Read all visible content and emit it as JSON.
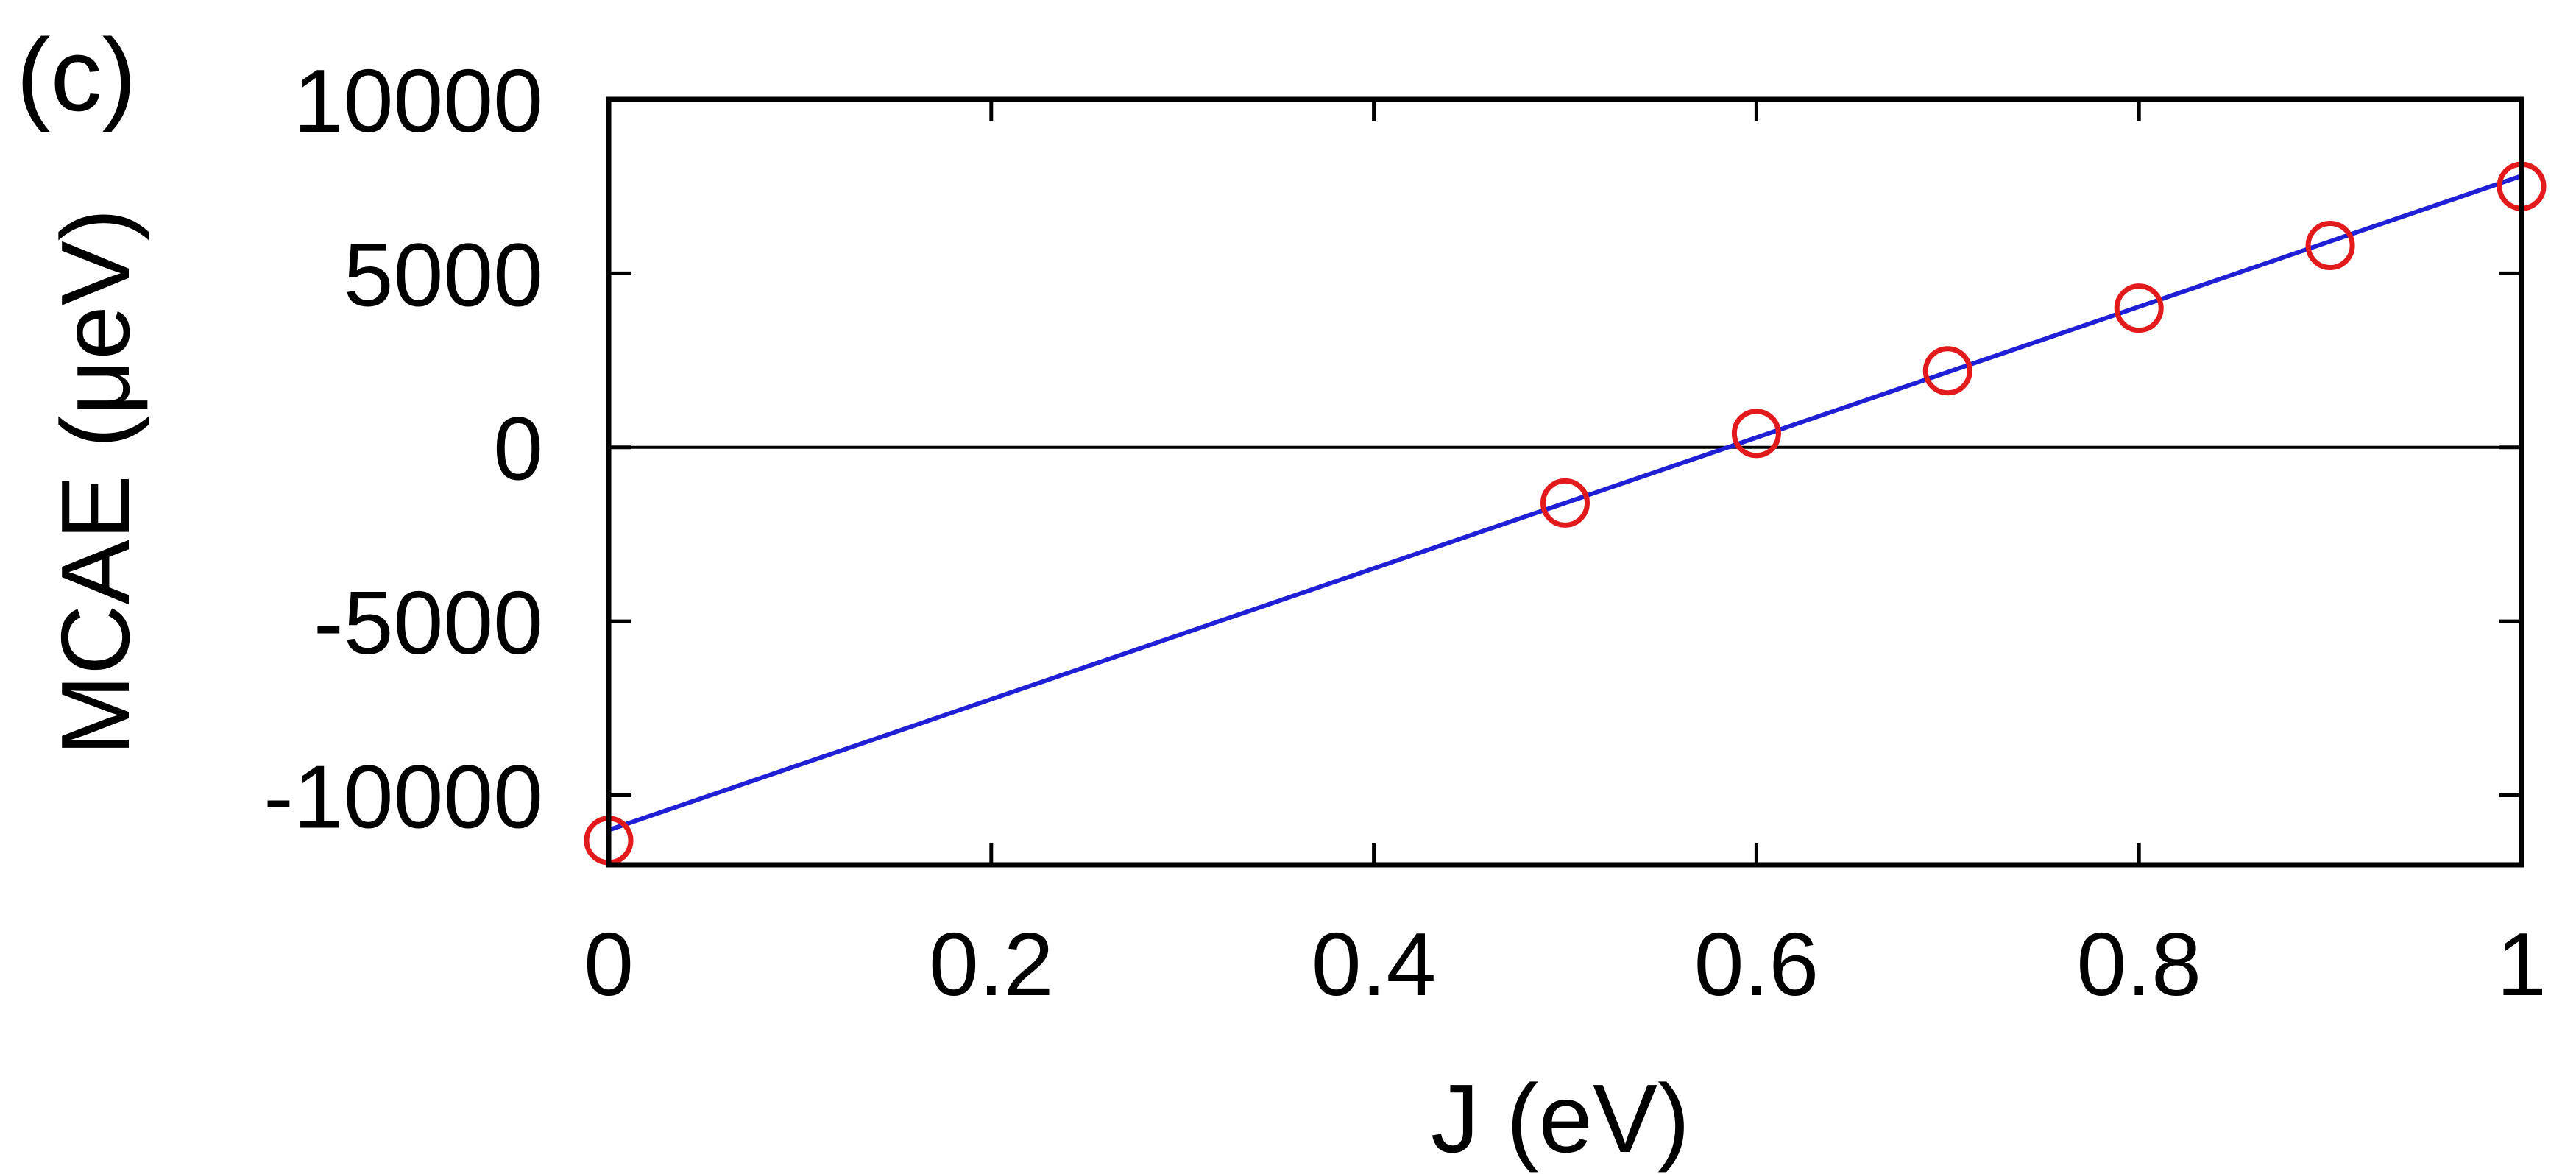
{
  "panel_label": "(c)",
  "chart_data": {
    "type": "scatter",
    "xlabel": "J (eV)",
    "ylabel": "MCAE (μeV)",
    "xlim": [
      0,
      1
    ],
    "ylim": [
      -12000,
      10000
    ],
    "x_ticks": [
      0,
      0.2,
      0.4,
      0.6,
      0.8,
      1
    ],
    "x_tick_labels": [
      "0",
      "0.2",
      "0.4",
      "0.6",
      "0.8",
      "1"
    ],
    "y_ticks": [
      -10000,
      -5000,
      0,
      5000,
      10000
    ],
    "y_tick_labels": [
      "-10000",
      "-5000",
      "0",
      "5000",
      "10000"
    ],
    "grid": false,
    "zero_line": true,
    "series": [
      {
        "kind": "points",
        "marker": "open-circle",
        "color": "#e31a1c",
        "x": [
          0,
          0.5,
          0.6,
          0.7,
          0.8,
          0.9,
          1.0
        ],
        "y": [
          -11300,
          -1600,
          400,
          2200,
          4000,
          5800,
          7500
        ]
      },
      {
        "kind": "fit-line",
        "color": "#1f1fd6",
        "x": [
          0,
          1
        ],
        "y": [
          -11000,
          7800
        ]
      }
    ]
  }
}
